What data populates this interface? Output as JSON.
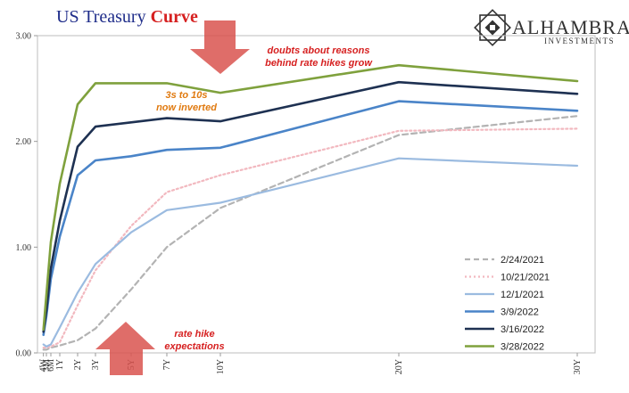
{
  "title": {
    "part1": "US Treasury ",
    "part2": "Curve",
    "part1_color": "#1f2d8a",
    "part2_color": "#d62020"
  },
  "logo": {
    "name": "ALHAMBRA",
    "sub": "INVESTMENTS"
  },
  "annotations": [
    {
      "id": "doubts",
      "lines": [
        "doubts about reasons",
        "behind rate hikes grow"
      ],
      "color": "#d62020"
    },
    {
      "id": "inverted",
      "lines": [
        "3s to 10s",
        "now inverted"
      ],
      "color": "#e07a10"
    },
    {
      "id": "rate-hike",
      "lines": [
        "rate hike",
        "expectations"
      ],
      "color": "#d62020"
    }
  ],
  "chart_data": {
    "type": "line",
    "x_tenor_years": [
      0.0833,
      0.25,
      0.5,
      1,
      2,
      3,
      5,
      7,
      10,
      20,
      30
    ],
    "x_tick_labels": [
      "4W",
      "3M",
      "6M",
      "1Y",
      "2Y",
      "3Y",
      "5Y",
      "7Y",
      "10Y",
      "20Y",
      "30Y"
    ],
    "ylim": [
      0,
      3
    ],
    "y_ticks": [
      "0.00",
      "1.00",
      "2.00",
      "3.00"
    ],
    "grid": false,
    "legend_position": "bottom-right",
    "series": [
      {
        "name": "2/24/2021",
        "color": "#b3b3b3",
        "dash": "6,4",
        "width": 2.2,
        "values": [
          0.03,
          0.03,
          0.05,
          0.07,
          0.12,
          0.23,
          0.6,
          1.0,
          1.37,
          2.06,
          2.24
        ]
      },
      {
        "name": "10/21/2021",
        "color": "#f2b8bf",
        "dash": "2,3",
        "width": 2.2,
        "values": [
          0.05,
          0.05,
          0.06,
          0.1,
          0.45,
          0.78,
          1.2,
          1.52,
          1.68,
          2.1,
          2.12
        ]
      },
      {
        "name": "12/1/2021",
        "color": "#9bbbe0",
        "dash": "",
        "width": 2.2,
        "values": [
          0.08,
          0.06,
          0.08,
          0.24,
          0.57,
          0.84,
          1.14,
          1.35,
          1.42,
          1.84,
          1.77
        ]
      },
      {
        "name": "3/9/2022",
        "color": "#4a84c8",
        "dash": "",
        "width": 2.6,
        "values": [
          0.17,
          0.35,
          0.7,
          1.1,
          1.68,
          1.82,
          1.86,
          1.92,
          1.94,
          2.38,
          2.29
        ]
      },
      {
        "name": "3/16/2022",
        "color": "#1e3152",
        "dash": "",
        "width": 2.6,
        "values": [
          0.2,
          0.4,
          0.8,
          1.25,
          1.95,
          2.14,
          2.18,
          2.22,
          2.19,
          2.56,
          2.45
        ]
      },
      {
        "name": "3/28/2022",
        "color": "#7fa13d",
        "dash": "",
        "width": 2.6,
        "values": [
          0.22,
          0.55,
          1.05,
          1.6,
          2.35,
          2.55,
          2.55,
          2.55,
          2.46,
          2.72,
          2.57
        ]
      }
    ]
  }
}
